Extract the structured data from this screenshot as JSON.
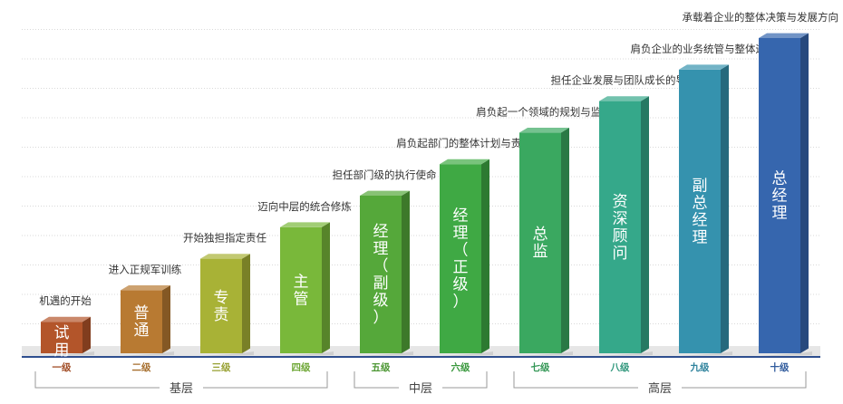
{
  "chart_data": {
    "type": "bar",
    "categories": [
      "一级",
      "二级",
      "三级",
      "四级",
      "五级",
      "六级",
      "七级",
      "八级",
      "九级",
      "十级"
    ],
    "values": [
      1,
      2,
      3,
      4,
      5,
      6,
      7,
      8,
      9,
      10
    ],
    "bar_labels": [
      "试用",
      "普通",
      "专责",
      "主管",
      "经理（副级）",
      "经理（正级）",
      "总监",
      "资深顾问",
      "副总经理",
      "总经理"
    ],
    "descriptions": [
      "机遇的开始",
      "进入正规军训练",
      "开始独担指定责任",
      "迈向中层的统合修炼",
      "担任部门级的执行使命",
      "肩负起部门的整体计划与责任",
      "肩负起一个领域的规划与监管",
      "担任企业发展与团队成长的导师",
      "肩负企业的业务统管与整体运营",
      "承载着企业的整体决策与发展方向"
    ],
    "colors": [
      "#b3552a",
      "#b87a32",
      "#a8b236",
      "#79b83a",
      "#55a83a",
      "#3fa944",
      "#3aa860",
      "#35a88a",
      "#3592ae",
      "#3666ae"
    ],
    "groups": [
      {
        "label": "基层",
        "from": 0,
        "to": 3
      },
      {
        "label": "中层",
        "from": 4,
        "to": 5
      },
      {
        "label": "高层",
        "from": 6,
        "to": 9
      }
    ],
    "grid": true,
    "ylim": [
      0,
      10
    ]
  }
}
